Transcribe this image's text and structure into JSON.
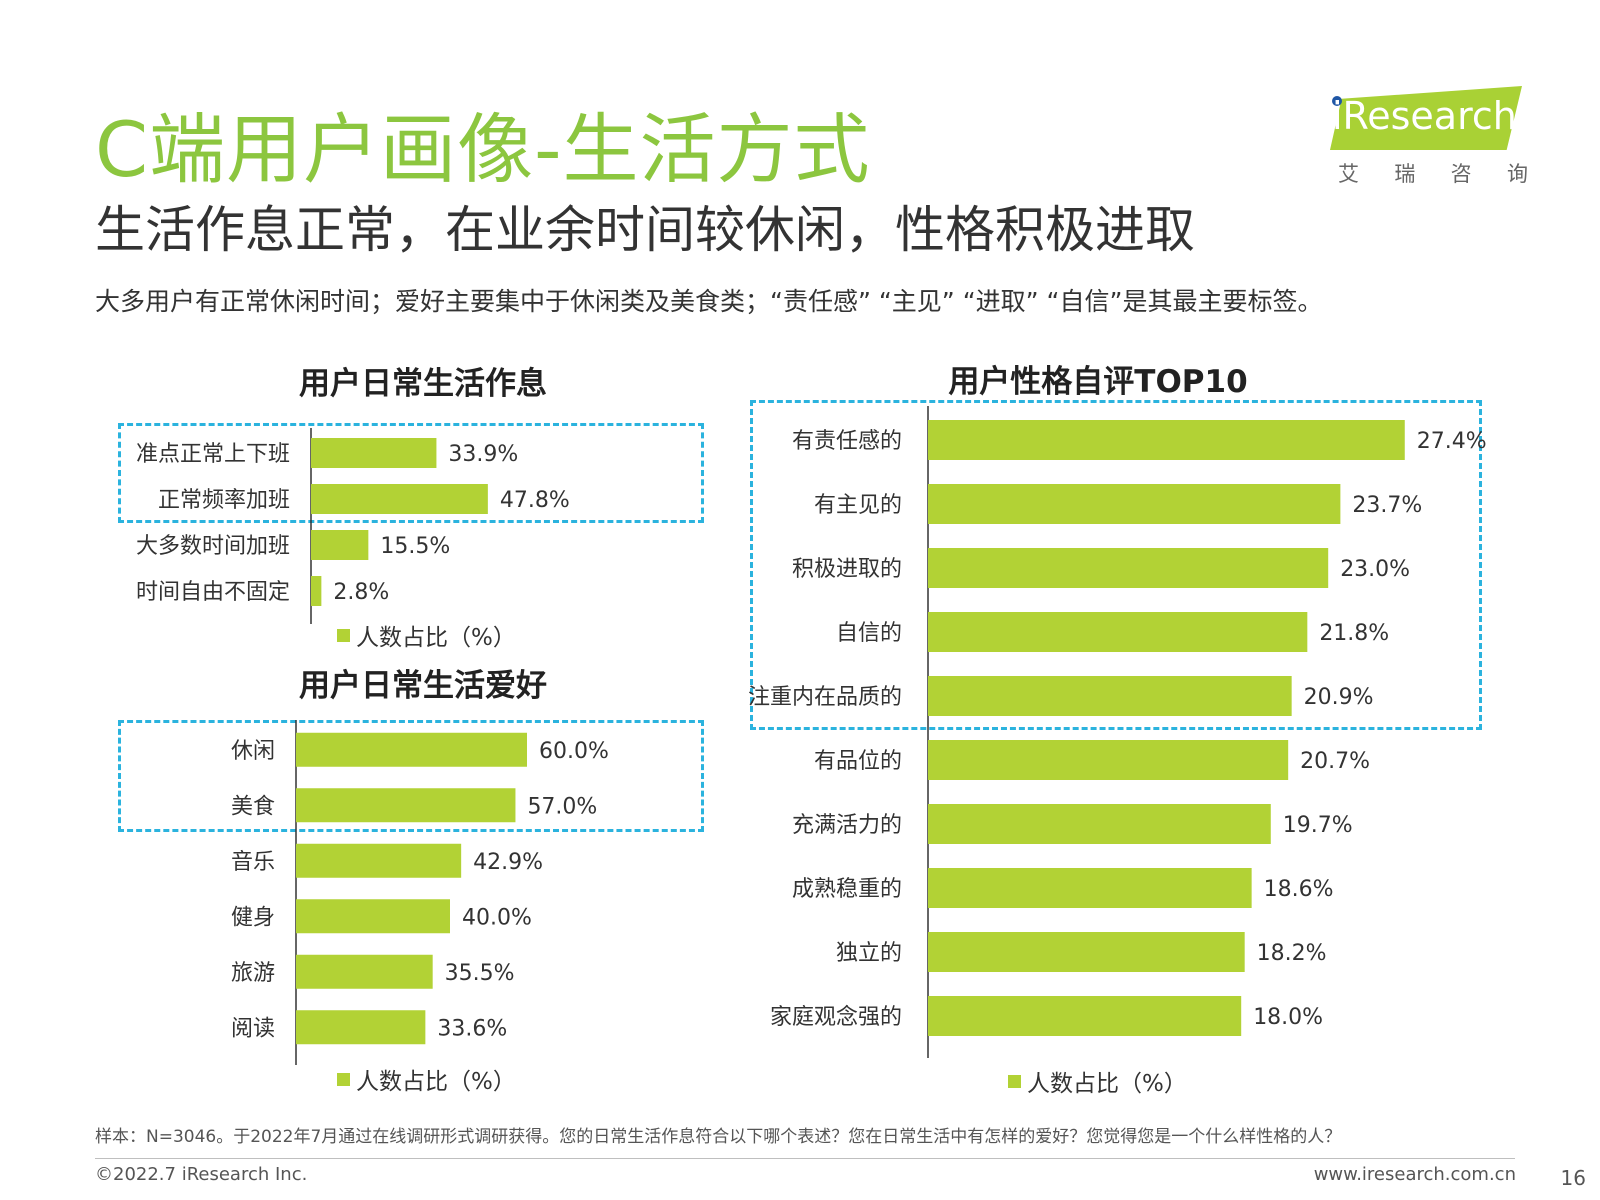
{
  "page": {
    "title": "C端用户画像-生活方式",
    "subtitle": "生活作息正常，在业余时间较休闲，性格积极进取",
    "summary": "大多用户有正常休闲时间；爱好主要集中于休闲类及美食类；“责任感”  “主见”  “进取”  “自信”是其最主要标签。",
    "footnote": "样本：N=3046。于2022年7月通过在线调研形式调研获得。您的日常生活作息符合以下哪个表述？您在日常生活中有怎样的爱好？您觉得您是一个什么样性格的人？",
    "copyright": "©2022.7 iResearch Inc.",
    "website": "www.iresearch.com.cn",
    "page_number": "16"
  },
  "logo": {
    "text": "iResearch",
    "subtitle": [
      "艾",
      "瑞",
      "咨",
      "询"
    ]
  },
  "colors": {
    "bar": "#b2d235",
    "title": "#8cc63f",
    "highlight": "#2bb3de"
  },
  "chart_data": [
    {
      "id": "schedule",
      "type": "bar",
      "orientation": "horizontal",
      "title": "用户日常生活作息",
      "categories": [
        "准点正常上下班",
        "正常频率加班",
        "大多数时间加班",
        "时间自由不固定"
      ],
      "series": [
        {
          "name": "人数占比（%）",
          "values": [
            33.9,
            47.8,
            15.5,
            2.8
          ]
        }
      ],
      "data_labels": [
        "33.9%",
        "47.8%",
        "15.5%",
        "2.8%"
      ],
      "xlim": [
        0,
        100
      ],
      "legend": "bottom",
      "highlighted_categories": [
        "准点正常上下班",
        "正常频率加班"
      ]
    },
    {
      "id": "hobby",
      "type": "bar",
      "orientation": "horizontal",
      "title": "用户日常生活爱好",
      "categories": [
        "休闲",
        "美食",
        "音乐",
        "健身",
        "旅游",
        "阅读"
      ],
      "series": [
        {
          "name": "人数占比（%）",
          "values": [
            60.0,
            57.0,
            42.9,
            40.0,
            35.5,
            33.6
          ]
        }
      ],
      "data_labels": [
        "60.0%",
        "57.0%",
        "42.9%",
        "40.0%",
        "35.5%",
        "33.6%"
      ],
      "xlim": [
        0,
        100
      ],
      "legend": "bottom",
      "highlighted_categories": [
        "休闲",
        "美食"
      ]
    },
    {
      "id": "personality",
      "type": "bar",
      "orientation": "horizontal",
      "title": "用户性格自评TOP10",
      "categories": [
        "有责任感的",
        "有主见的",
        "积极进取的",
        "自信的",
        "注重内在品质的",
        "有品位的",
        "充满活力的",
        "成熟稳重的",
        "独立的",
        "家庭观念强的"
      ],
      "series": [
        {
          "name": "人数占比（%）",
          "values": [
            27.4,
            23.7,
            23.0,
            21.8,
            20.9,
            20.7,
            19.7,
            18.6,
            18.2,
            18.0
          ]
        }
      ],
      "data_labels": [
        "27.4%",
        "23.7%",
        "23.0%",
        "21.8%",
        "20.9%",
        "20.7%",
        "19.7%",
        "18.6%",
        "18.2%",
        "18.0%"
      ],
      "xlim": [
        0,
        30
      ],
      "legend": "bottom",
      "highlighted_categories": [
        "有责任感的",
        "有主见的",
        "积极进取的",
        "自信的",
        "注重内在品质的"
      ]
    }
  ]
}
